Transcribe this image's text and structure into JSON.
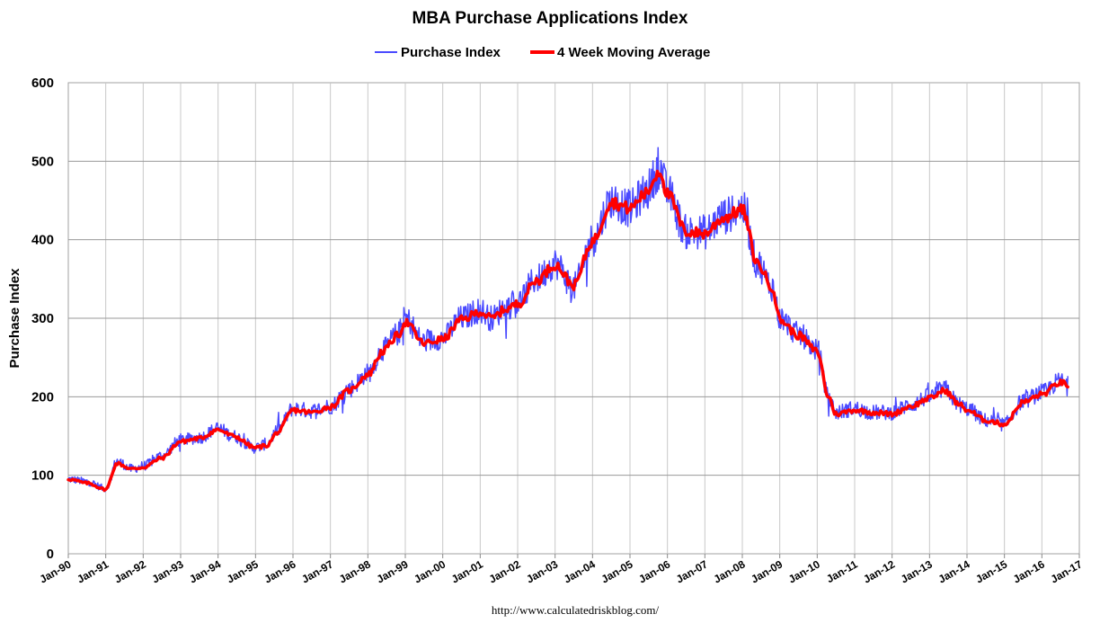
{
  "chart_data": {
    "type": "line",
    "title": "MBA Purchase Applications Index",
    "xlabel": "",
    "ylabel": "Purchase Index",
    "ylim": [
      0,
      600
    ],
    "yticks": [
      0,
      100,
      200,
      300,
      400,
      500,
      600
    ],
    "x_ticks": [
      "Jan-90",
      "Jan-91",
      "Jan-92",
      "Jan-93",
      "Jan-94",
      "Jan-95",
      "Jan-96",
      "Jan-97",
      "Jan-98",
      "Jan-99",
      "Jan-00",
      "Jan-01",
      "Jan-02",
      "Jan-03",
      "Jan-04",
      "Jan-05",
      "Jan-06",
      "Jan-07",
      "Jan-08",
      "Jan-09",
      "Jan-10",
      "Jan-11",
      "Jan-12",
      "Jan-13",
      "Jan-14",
      "Jan-15",
      "Jan-16",
      "Jan-17"
    ],
    "x_range_years": [
      1990,
      2017
    ],
    "legend_position": "top-center",
    "grid": true,
    "series": [
      {
        "name": "Purchase Index",
        "color": "#4a4aff",
        "note": "weekly, noisy around the moving average",
        "x": [
          1990.0,
          1990.5,
          1991.0,
          1991.3,
          1991.7,
          1992.0,
          1992.5,
          1993.0,
          1993.5,
          1994.0,
          1994.4,
          1995.0,
          1995.3,
          1995.6,
          1996.0,
          1996.5,
          1997.0,
          1997.5,
          1998.0,
          1998.4,
          1998.8,
          1999.0,
          1999.5,
          2000.0,
          2000.5,
          2001.0,
          2001.3,
          2001.7,
          2002.0,
          2002.5,
          2003.0,
          2003.5,
          2004.0,
          2004.5,
          2005.0,
          2005.4,
          2005.8,
          2006.0,
          2006.5,
          2007.0,
          2007.5,
          2008.0,
          2008.4,
          2008.8,
          2009.0,
          2009.5,
          2010.0,
          2010.3,
          2010.5,
          2011.0,
          2011.5,
          2012.0,
          2012.5,
          2013.0,
          2013.4,
          2013.8,
          2014.0,
          2014.5,
          2015.0,
          2015.5,
          2016.0,
          2016.5,
          2016.7
        ],
        "values": [
          95,
          92,
          83,
          118,
          108,
          112,
          125,
          145,
          148,
          160,
          150,
          135,
          140,
          158,
          185,
          182,
          188,
          210,
          230,
          260,
          280,
          300,
          270,
          275,
          300,
          310,
          300,
          315,
          320,
          350,
          370,
          340,
          400,
          450,
          440,
          460,
          490,
          460,
          410,
          410,
          430,
          440,
          370,
          340,
          300,
          280,
          260,
          200,
          180,
          185,
          180,
          180,
          190,
          200,
          210,
          190,
          185,
          170,
          165,
          195,
          205,
          220,
          215
        ]
      },
      {
        "name": "4 Week Moving Average",
        "color": "#ff0000",
        "x": [
          1990.0,
          1990.5,
          1991.0,
          1991.3,
          1991.7,
          1992.0,
          1992.5,
          1993.0,
          1993.5,
          1994.0,
          1994.4,
          1995.0,
          1995.3,
          1995.6,
          1996.0,
          1996.5,
          1997.0,
          1997.5,
          1998.0,
          1998.4,
          1998.8,
          1999.0,
          1999.5,
          2000.0,
          2000.5,
          2001.0,
          2001.3,
          2001.7,
          2002.0,
          2002.5,
          2003.0,
          2003.5,
          2004.0,
          2004.5,
          2005.0,
          2005.4,
          2005.8,
          2006.0,
          2006.5,
          2007.0,
          2007.5,
          2008.0,
          2008.4,
          2008.8,
          2009.0,
          2009.5,
          2010.0,
          2010.3,
          2010.5,
          2011.0,
          2011.5,
          2012.0,
          2012.5,
          2013.0,
          2013.4,
          2013.8,
          2014.0,
          2014.5,
          2015.0,
          2015.5,
          2016.0,
          2016.5,
          2016.7
        ],
        "values": [
          95,
          90,
          82,
          115,
          108,
          110,
          122,
          143,
          147,
          158,
          150,
          135,
          138,
          155,
          183,
          180,
          187,
          208,
          228,
          258,
          278,
          295,
          268,
          273,
          298,
          308,
          300,
          312,
          318,
          348,
          368,
          342,
          398,
          448,
          440,
          458,
          488,
          458,
          410,
          408,
          428,
          438,
          370,
          340,
          298,
          278,
          258,
          200,
          178,
          183,
          180,
          178,
          188,
          198,
          208,
          190,
          183,
          170,
          165,
          193,
          203,
          218,
          215
        ]
      }
    ],
    "source": "http://www.calculatedriskblog.com/"
  }
}
